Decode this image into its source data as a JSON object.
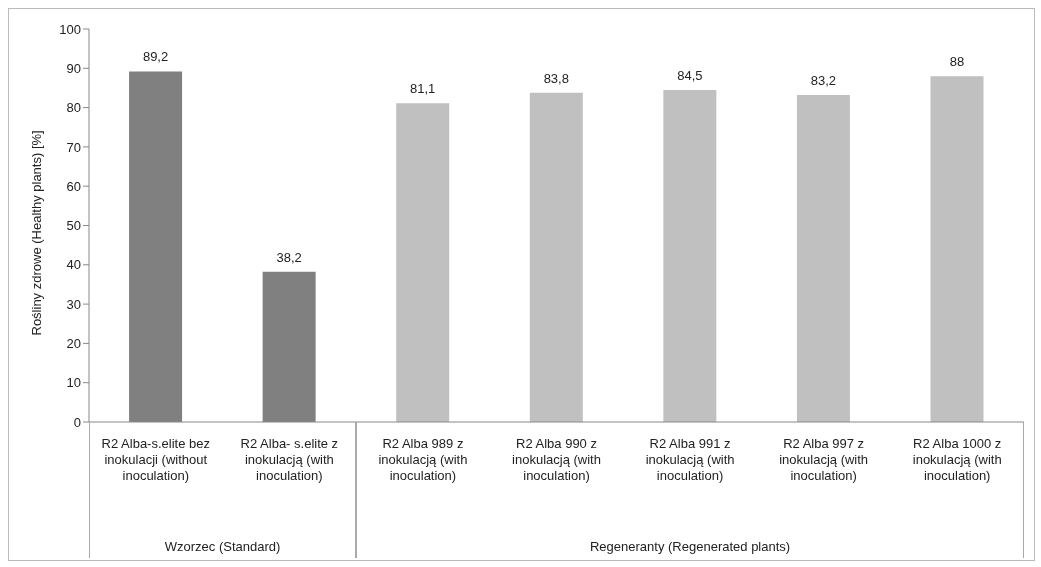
{
  "chart_data": {
    "type": "bar",
    "ylabel": "Rośliny  zdrowe (Healthy plants) [%]",
    "categories": [
      "R2 Alba-s.elite bez inokulacji (without inoculation)",
      "R2 Alba- s.elite z inokulacją (with inoculation)",
      "R2 Alba 989 z inokulacją (with inoculation)",
      "R2 Alba 990 z inokulacją (with inoculation)",
      "R2 Alba 991 z inokulacją (with inoculation)",
      "R2 Alba 997 z inokulacją (with inoculation)",
      "R2 Alba 1000 z inokulacją (with inoculation)"
    ],
    "values": [
      89.2,
      38.2,
      81.1,
      83.8,
      84.5,
      83.2,
      88
    ],
    "colors": [
      "#808080",
      "#808080",
      "#c0c0c0",
      "#c0c0c0",
      "#c0c0c0",
      "#c0c0c0",
      "#c0c0c0"
    ],
    "value_labels": [
      "89,2",
      "38,2",
      "81,1",
      "83,8",
      "84,5",
      "83,2",
      "88"
    ],
    "ylim": [
      0,
      100
    ],
    "yticks": [
      0,
      10,
      20,
      30,
      40,
      50,
      60,
      70,
      80,
      90,
      100
    ],
    "annotations": [
      "Wzorzec (Standard)",
      "Regeneranty (Regenerated plants)"
    ],
    "grid": false
  }
}
